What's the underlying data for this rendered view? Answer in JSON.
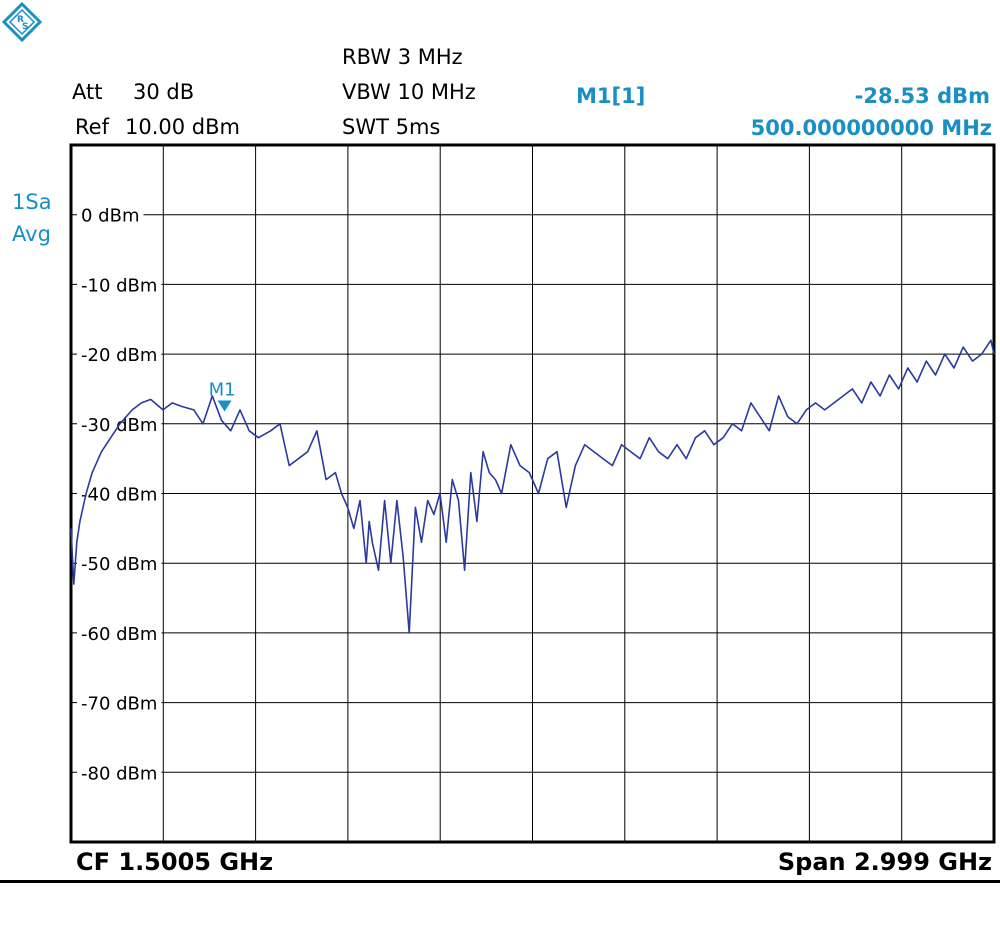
{
  "header": {
    "att_label": "Att",
    "att_value": "30 dB",
    "ref_label": "Ref",
    "ref_value": "10.00 dBm",
    "rbw": "RBW 3 MHz",
    "vbw": "VBW 10 MHz",
    "swt": "SWT 5ms",
    "marker_label": "M1[1]",
    "marker_level": "-28.53 dBm",
    "marker_freq": "500.000000000 MHz"
  },
  "trace_info": {
    "line1": "1Sa",
    "line2": "Avg"
  },
  "footer": {
    "cf": "CF 1.5005 GHz",
    "span": "Span 2.999 GHz"
  },
  "colors": {
    "trace": "#2b3a9e",
    "marker": "#1a8fc4",
    "grid": "#000000",
    "logo": "#1a8fc4"
  },
  "icons": {
    "logo": "rohde-schwarz-logo-icon",
    "marker": "marker-triangle-icon"
  },
  "chart_data": {
    "type": "line",
    "xlim": [
      0.001,
      3.0
    ],
    "ylim": [
      -90,
      10
    ],
    "grid": true,
    "x_divisions": 10,
    "y_tick_labels": [
      "0 dBm",
      "-10 dBm",
      "-20 dBm",
      "-30 dBm",
      "-40 dBm",
      "-50 dBm",
      "-60 dBm",
      "-70 dBm",
      "-80 dBm"
    ],
    "y_tick_values": [
      0,
      -10,
      -20,
      -30,
      -40,
      -50,
      -60,
      -70,
      -80
    ],
    "marker": {
      "label": "M1",
      "x": 0.5,
      "y": -28.53
    },
    "series": [
      {
        "x": [
          0.001,
          0.01,
          0.02,
          0.03,
          0.05,
          0.07,
          0.1,
          0.13,
          0.16,
          0.2,
          0.23,
          0.26,
          0.3,
          0.33,
          0.36,
          0.4,
          0.43,
          0.46,
          0.49,
          0.52,
          0.55,
          0.58,
          0.61,
          0.65,
          0.68,
          0.71,
          0.74,
          0.77,
          0.8,
          0.83,
          0.86,
          0.88,
          0.9,
          0.92,
          0.94,
          0.96,
          0.97,
          0.98,
          1.0,
          1.02,
          1.04,
          1.06,
          1.08,
          1.1,
          1.12,
          1.14,
          1.16,
          1.18,
          1.2,
          1.22,
          1.24,
          1.26,
          1.28,
          1.3,
          1.32,
          1.34,
          1.36,
          1.38,
          1.4,
          1.43,
          1.46,
          1.49,
          1.52,
          1.55,
          1.58,
          1.61,
          1.64,
          1.67,
          1.7,
          1.73,
          1.76,
          1.79,
          1.82,
          1.85,
          1.88,
          1.91,
          1.94,
          1.97,
          2.0,
          2.03,
          2.06,
          2.09,
          2.12,
          2.15,
          2.18,
          2.21,
          2.24,
          2.27,
          2.3,
          2.33,
          2.36,
          2.39,
          2.42,
          2.45,
          2.48,
          2.51,
          2.54,
          2.57,
          2.6,
          2.63,
          2.66,
          2.69,
          2.72,
          2.75,
          2.78,
          2.81,
          2.84,
          2.87,
          2.9,
          2.93,
          2.96,
          2.99,
          3.0
        ],
        "y": [
          -45,
          -53,
          -47,
          -44,
          -40,
          -37,
          -34,
          -32,
          -30,
          -28,
          -27,
          -26.5,
          -28,
          -27,
          -27.5,
          -28,
          -30,
          -26,
          -29.5,
          -31,
          -28,
          -31,
          -32,
          -31,
          -30,
          -36,
          -35,
          -34,
          -31,
          -38,
          -37,
          -40,
          -42,
          -45,
          -41,
          -50,
          -44,
          -47,
          -51,
          -41,
          -50,
          -41,
          -49,
          -60,
          -42,
          -47,
          -41,
          -43,
          -40,
          -47,
          -38,
          -41,
          -51,
          -37,
          -44,
          -34,
          -37,
          -38,
          -40,
          -33,
          -36,
          -37,
          -40,
          -35,
          -34,
          -42,
          -36,
          -33,
          -34,
          -35,
          -36,
          -33,
          -34,
          -35,
          -32,
          -34,
          -35,
          -33,
          -35,
          -32,
          -31,
          -33,
          -32,
          -30,
          -31,
          -27,
          -29,
          -31,
          -26,
          -29,
          -30,
          -28,
          -27,
          -28,
          -27,
          -26,
          -25,
          -27,
          -24,
          -26,
          -23,
          -25,
          -22,
          -24,
          -21,
          -23,
          -20,
          -22,
          -19,
          -21,
          -20,
          -18,
          -20
        ]
      }
    ]
  }
}
